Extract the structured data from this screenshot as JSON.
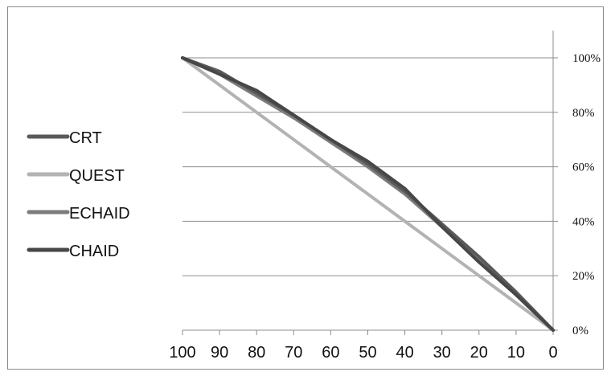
{
  "chart_data": {
    "type": "line",
    "title": "",
    "xlabel": "",
    "ylabel": "",
    "x": [
      100,
      90,
      80,
      70,
      60,
      50,
      40,
      30,
      20,
      10,
      0
    ],
    "x_tick_labels": [
      "100",
      "90",
      "80",
      "70",
      "60",
      "50",
      "40",
      "30",
      "20",
      "10",
      "0"
    ],
    "x_direction": "descending",
    "xlim": [
      100,
      0
    ],
    "ylim": [
      0,
      100
    ],
    "y_ticks": [
      0,
      20,
      40,
      60,
      80,
      100
    ],
    "y_tick_labels": [
      "0%",
      "20%",
      "40%",
      "60%",
      "80%",
      "100%"
    ],
    "y_axis_side": "right",
    "grid": "horizontal",
    "legend_position": "left",
    "series": [
      {
        "name": "CRT",
        "color": "#5a5a5a",
        "values": [
          100,
          95,
          87,
          79,
          70,
          61,
          51,
          39,
          27,
          14,
          0
        ]
      },
      {
        "name": "QUEST",
        "color": "#b3b3b3",
        "values": [
          100,
          90,
          80,
          70,
          60,
          50,
          40,
          30,
          20,
          10,
          0
        ]
      },
      {
        "name": "ECHAID",
        "color": "#7c7c7c",
        "values": [
          100,
          94,
          86,
          78,
          69,
          60,
          50,
          38,
          26,
          13,
          0
        ]
      },
      {
        "name": "CHAID",
        "color": "#474747",
        "values": [
          100,
          94,
          88,
          79,
          70,
          62,
          52,
          38,
          25,
          13,
          0
        ]
      }
    ]
  }
}
